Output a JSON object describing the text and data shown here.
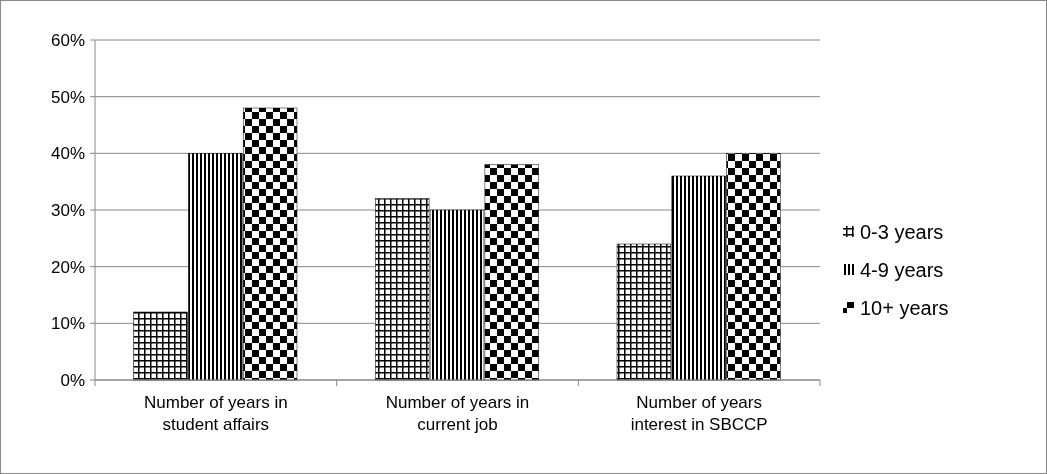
{
  "chart_data": {
    "type": "bar",
    "categories": [
      "Number of years in student affairs",
      "Number of years in current job",
      "Number of years interest in SBCCP"
    ],
    "series": [
      {
        "name": "0-3 years",
        "color": "#000000",
        "values": [
          12,
          32,
          24
        ]
      },
      {
        "name": "4-9 years",
        "color": "#000000",
        "values": [
          40,
          30,
          36
        ]
      },
      {
        "name": "10+ years",
        "color": "#000000",
        "values": [
          48,
          38,
          40
        ]
      }
    ],
    "ylim": [
      0,
      60
    ],
    "yticks": [
      {
        "value": 0,
        "label": "0%"
      },
      {
        "value": 10,
        "label": "10%"
      },
      {
        "value": 20,
        "label": "20%"
      },
      {
        "value": 30,
        "label": "30%"
      },
      {
        "value": 40,
        "label": "40%"
      },
      {
        "value": 50,
        "label": "50%"
      },
      {
        "value": 60,
        "label": "60%"
      }
    ],
    "grid": "y",
    "legend": "right"
  }
}
